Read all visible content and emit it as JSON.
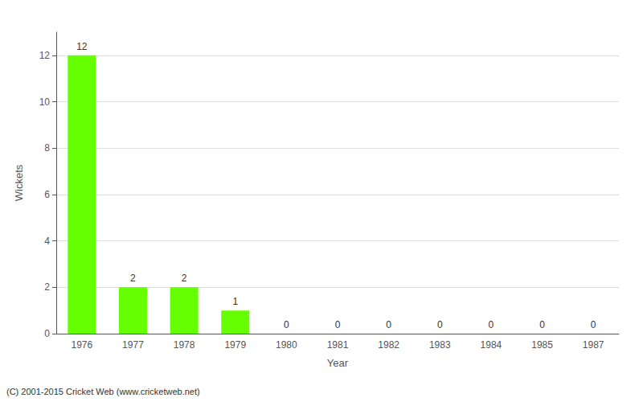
{
  "chart_data": {
    "type": "bar",
    "x_label": "Year",
    "y_label": "Wickets",
    "categories": [
      "1976",
      "1977",
      "1978",
      "1979",
      "1980",
      "1981",
      "1982",
      "1983",
      "1984",
      "1985",
      "1987"
    ],
    "values": [
      12,
      2,
      2,
      1,
      0,
      0,
      0,
      0,
      0,
      0,
      0
    ],
    "color": "#66ff00",
    "ylim": [
      0,
      13
    ],
    "yticks": [
      0,
      2,
      4,
      6,
      8,
      10,
      12
    ],
    "grid": true,
    "data_labels": true,
    "annotations": [
      "(C) 2001-2015 Cricket Web (www.cricketweb.net)"
    ]
  }
}
